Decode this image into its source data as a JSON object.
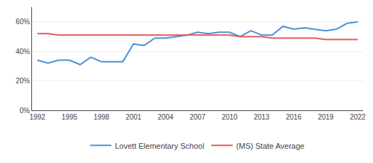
{
  "chart_data": {
    "type": "line",
    "x": [
      1992,
      1993,
      1994,
      1995,
      1996,
      1997,
      1998,
      1999,
      2000,
      2001,
      2002,
      2003,
      2004,
      2005,
      2006,
      2007,
      2008,
      2009,
      2010,
      2011,
      2012,
      2013,
      2014,
      2015,
      2016,
      2017,
      2018,
      2019,
      2020,
      2021,
      2022
    ],
    "series": [
      {
        "name": "Lovett Elementary School",
        "color": "#4a90d9",
        "values": [
          0.34,
          0.32,
          0.34,
          0.34,
          0.31,
          0.36,
          0.33,
          0.33,
          0.33,
          0.45,
          0.44,
          0.49,
          0.49,
          0.5,
          0.51,
          0.53,
          0.52,
          0.53,
          0.53,
          0.5,
          0.54,
          0.51,
          0.51,
          0.57,
          0.55,
          0.56,
          0.55,
          0.54,
          0.55,
          0.59,
          0.6
        ]
      },
      {
        "name": "(MS) State Average",
        "color": "#e05a5a",
        "values": [
          0.52,
          0.52,
          0.51,
          0.51,
          0.51,
          0.51,
          0.51,
          0.51,
          0.51,
          0.51,
          0.51,
          0.51,
          0.51,
          0.51,
          0.51,
          0.51,
          0.51,
          0.51,
          0.51,
          0.5,
          0.5,
          0.5,
          0.49,
          0.49,
          0.49,
          0.49,
          0.49,
          0.48,
          0.48,
          0.48,
          0.48
        ]
      }
    ],
    "xlim": [
      1991.5,
      2022.5
    ],
    "ylim": [
      0.0,
      0.7
    ],
    "xticks": [
      1992,
      1995,
      1998,
      2001,
      2004,
      2007,
      2010,
      2013,
      2016,
      2019,
      2022
    ],
    "yticks": [
      {
        "value": 0.0,
        "label": "0%"
      },
      {
        "value": 0.2,
        "label": "20%"
      },
      {
        "value": 0.4,
        "label": "40%"
      },
      {
        "value": 0.6,
        "label": "60%"
      }
    ],
    "grid": "y",
    "legend": "bottom"
  }
}
